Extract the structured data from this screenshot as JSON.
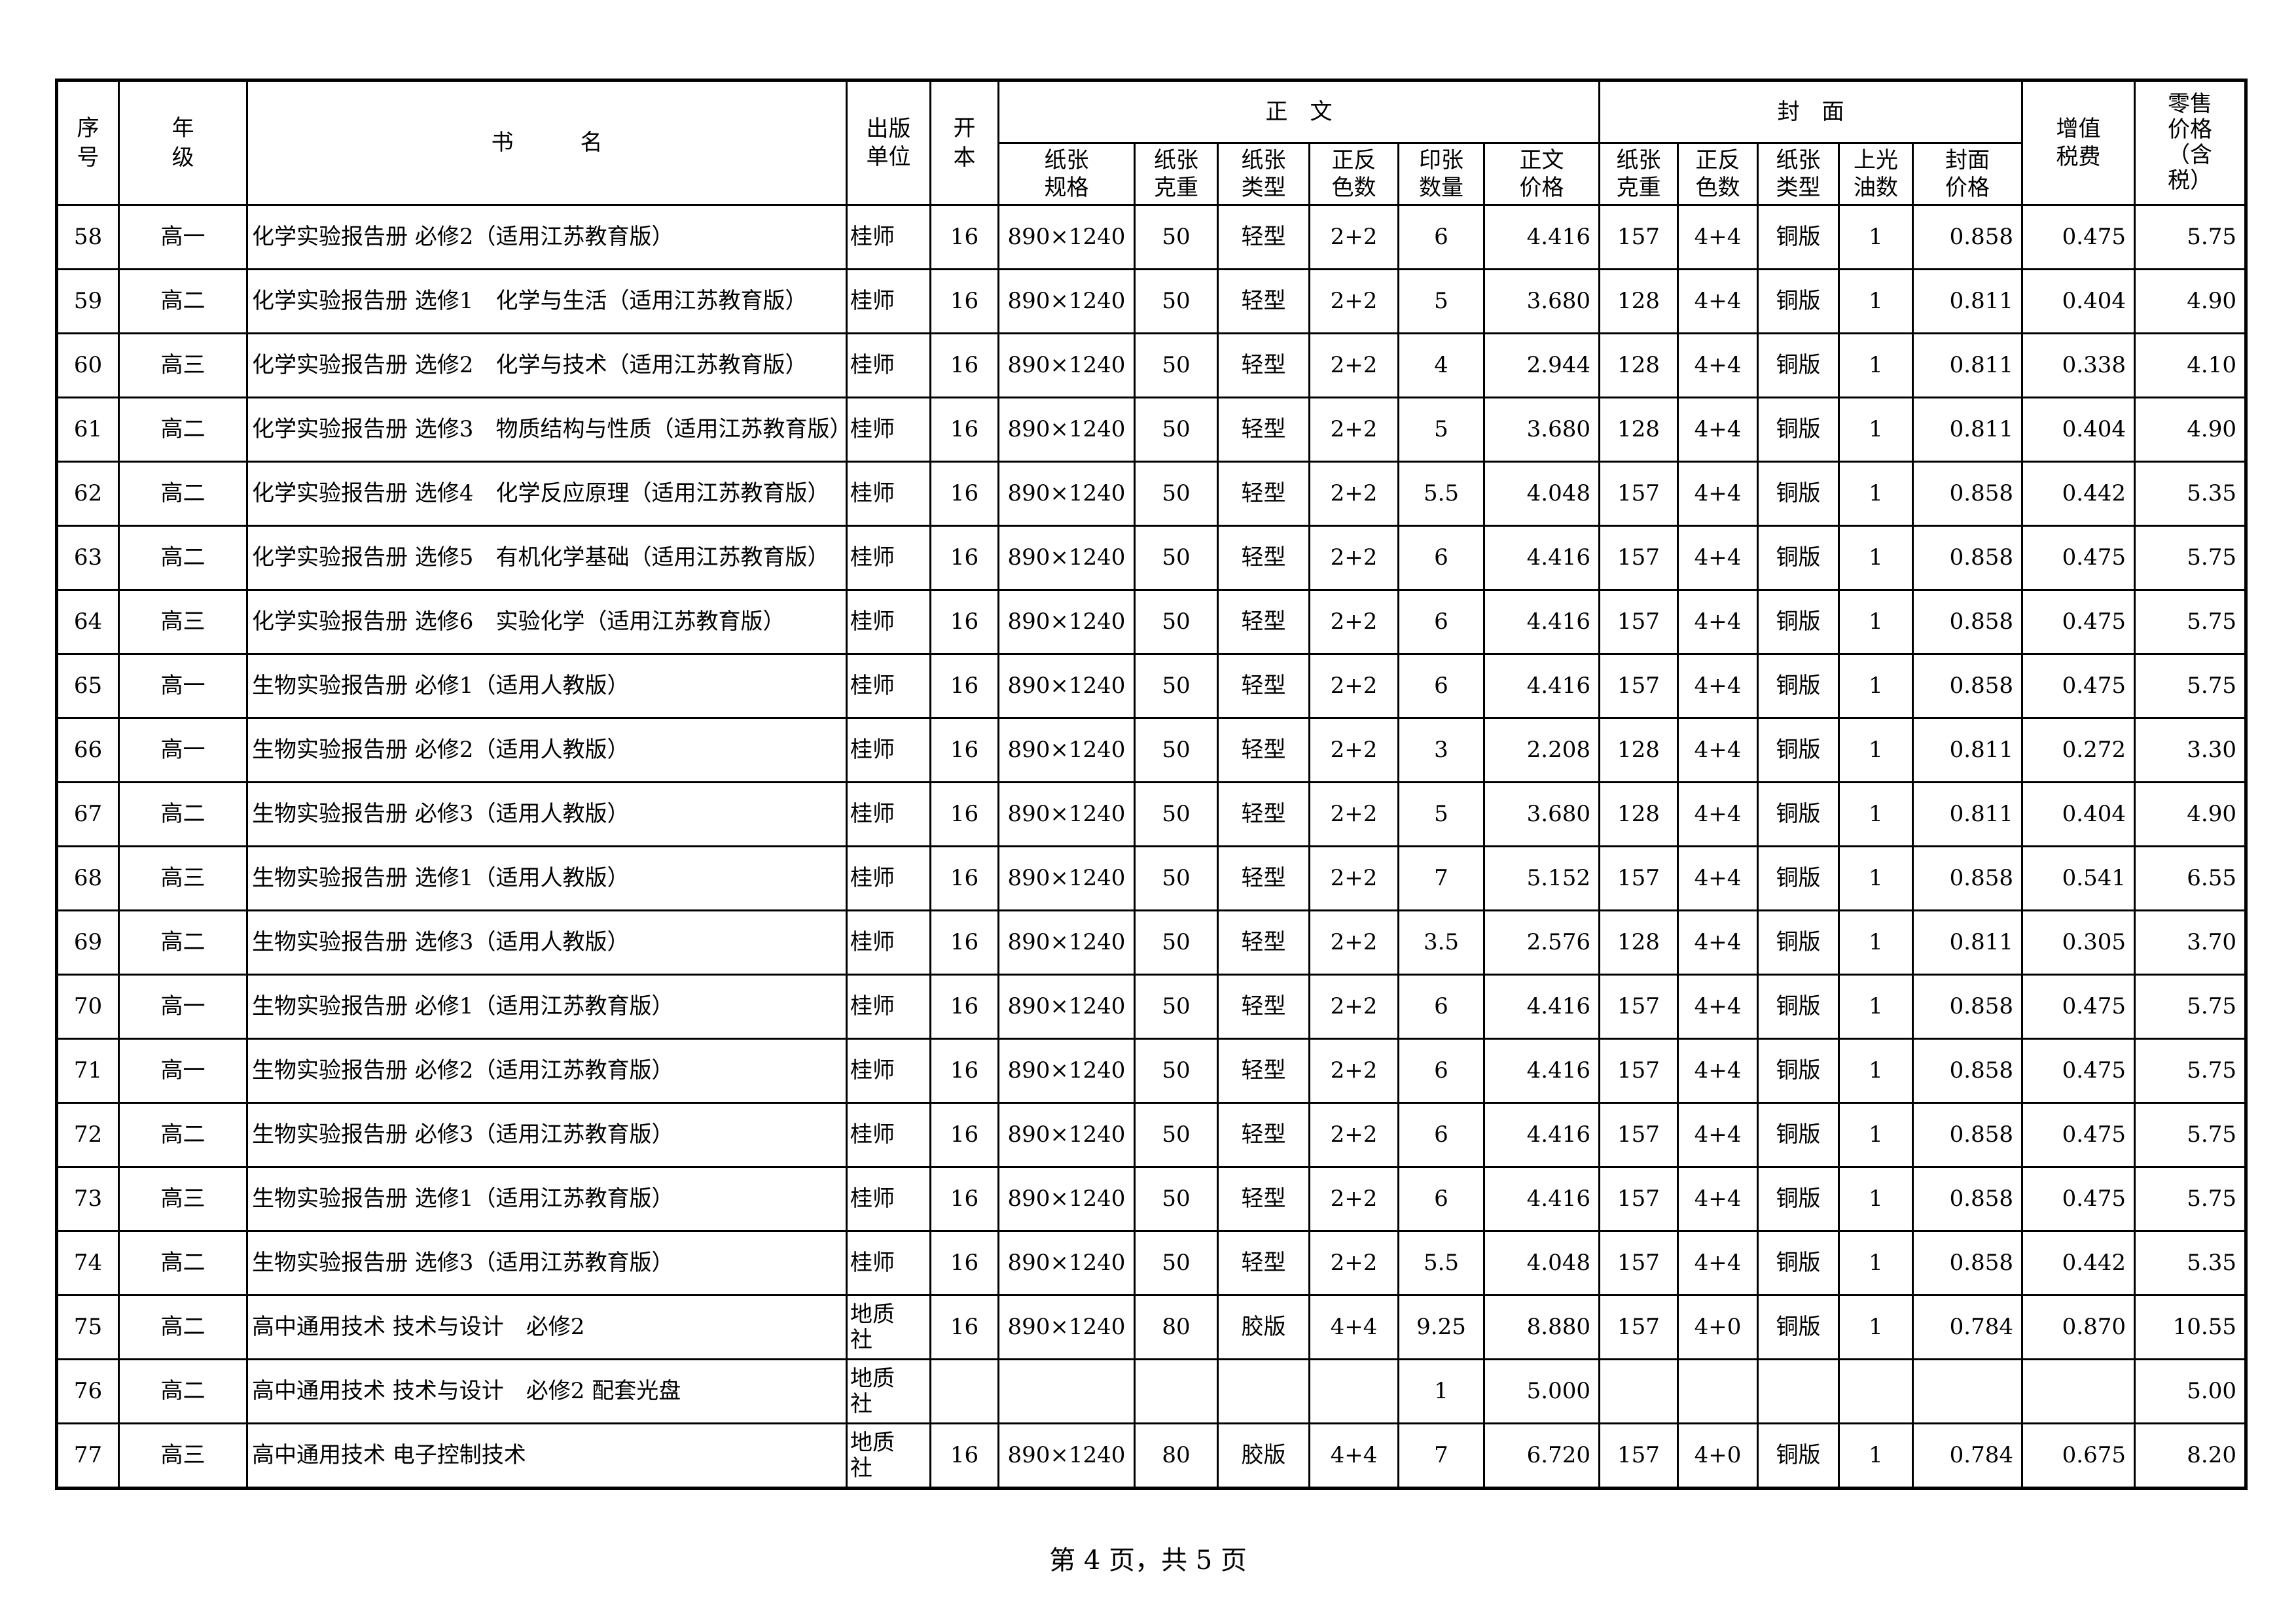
{
  "headers": {
    "seq": "序号",
    "grade": "年级",
    "title": "书　　　名",
    "publisher": "出版单位",
    "format": "开本",
    "body_group": "正　文",
    "cover_group": "封　面",
    "body_cols": [
      "纸张规格",
      "纸张克重",
      "纸张类型",
      "正反色数",
      "印张数量",
      "正文价格"
    ],
    "cover_cols": [
      "纸张克重",
      "正反色数",
      "纸张类型",
      "上光油数",
      "封面价格"
    ],
    "vat": "增值税费",
    "retail": "零售价格（含税）"
  },
  "rows": [
    [
      "58",
      "高一",
      "化学实验报告册 必修2（适用江苏教育版）",
      "桂师",
      "16",
      "890×1240",
      "50",
      "轻型",
      "2+2",
      "6",
      "4.416",
      "157",
      "4+4",
      "铜版",
      "1",
      "0.858",
      "0.475",
      "5.75"
    ],
    [
      "59",
      "高二",
      "化学实验报告册 选修1　化学与生活（适用江苏教育版）",
      "桂师",
      "16",
      "890×1240",
      "50",
      "轻型",
      "2+2",
      "5",
      "3.680",
      "128",
      "4+4",
      "铜版",
      "1",
      "0.811",
      "0.404",
      "4.90"
    ],
    [
      "60",
      "高三",
      "化学实验报告册 选修2　化学与技术（适用江苏教育版）",
      "桂师",
      "16",
      "890×1240",
      "50",
      "轻型",
      "2+2",
      "4",
      "2.944",
      "128",
      "4+4",
      "铜版",
      "1",
      "0.811",
      "0.338",
      "4.10"
    ],
    [
      "61",
      "高二",
      "化学实验报告册 选修3　物质结构与性质（适用江苏教育版）",
      "桂师",
      "16",
      "890×1240",
      "50",
      "轻型",
      "2+2",
      "5",
      "3.680",
      "128",
      "4+4",
      "铜版",
      "1",
      "0.811",
      "0.404",
      "4.90"
    ],
    [
      "62",
      "高二",
      "化学实验报告册 选修4　化学反应原理（适用江苏教育版）",
      "桂师",
      "16",
      "890×1240",
      "50",
      "轻型",
      "2+2",
      "5.5",
      "4.048",
      "157",
      "4+4",
      "铜版",
      "1",
      "0.858",
      "0.442",
      "5.35"
    ],
    [
      "63",
      "高二",
      "化学实验报告册 选修5　有机化学基础（适用江苏教育版）",
      "桂师",
      "16",
      "890×1240",
      "50",
      "轻型",
      "2+2",
      "6",
      "4.416",
      "157",
      "4+4",
      "铜版",
      "1",
      "0.858",
      "0.475",
      "5.75"
    ],
    [
      "64",
      "高三",
      "化学实验报告册 选修6　实验化学（适用江苏教育版）",
      "桂师",
      "16",
      "890×1240",
      "50",
      "轻型",
      "2+2",
      "6",
      "4.416",
      "157",
      "4+4",
      "铜版",
      "1",
      "0.858",
      "0.475",
      "5.75"
    ],
    [
      "65",
      "高一",
      "生物实验报告册 必修1（适用人教版）",
      "桂师",
      "16",
      "890×1240",
      "50",
      "轻型",
      "2+2",
      "6",
      "4.416",
      "157",
      "4+4",
      "铜版",
      "1",
      "0.858",
      "0.475",
      "5.75"
    ],
    [
      "66",
      "高一",
      "生物实验报告册 必修2（适用人教版）",
      "桂师",
      "16",
      "890×1240",
      "50",
      "轻型",
      "2+2",
      "3",
      "2.208",
      "128",
      "4+4",
      "铜版",
      "1",
      "0.811",
      "0.272",
      "3.30"
    ],
    [
      "67",
      "高二",
      "生物实验报告册 必修3（适用人教版）",
      "桂师",
      "16",
      "890×1240",
      "50",
      "轻型",
      "2+2",
      "5",
      "3.680",
      "128",
      "4+4",
      "铜版",
      "1",
      "0.811",
      "0.404",
      "4.90"
    ],
    [
      "68",
      "高三",
      "生物实验报告册 选修1（适用人教版）",
      "桂师",
      "16",
      "890×1240",
      "50",
      "轻型",
      "2+2",
      "7",
      "5.152",
      "157",
      "4+4",
      "铜版",
      "1",
      "0.858",
      "0.541",
      "6.55"
    ],
    [
      "69",
      "高二",
      "生物实验报告册 选修3（适用人教版）",
      "桂师",
      "16",
      "890×1240",
      "50",
      "轻型",
      "2+2",
      "3.5",
      "2.576",
      "128",
      "4+4",
      "铜版",
      "1",
      "0.811",
      "0.305",
      "3.70"
    ],
    [
      "70",
      "高一",
      "生物实验报告册 必修1（适用江苏教育版）",
      "桂师",
      "16",
      "890×1240",
      "50",
      "轻型",
      "2+2",
      "6",
      "4.416",
      "157",
      "4+4",
      "铜版",
      "1",
      "0.858",
      "0.475",
      "5.75"
    ],
    [
      "71",
      "高一",
      "生物实验报告册 必修2（适用江苏教育版）",
      "桂师",
      "16",
      "890×1240",
      "50",
      "轻型",
      "2+2",
      "6",
      "4.416",
      "157",
      "4+4",
      "铜版",
      "1",
      "0.858",
      "0.475",
      "5.75"
    ],
    [
      "72",
      "高二",
      "生物实验报告册 必修3（适用江苏教育版）",
      "桂师",
      "16",
      "890×1240",
      "50",
      "轻型",
      "2+2",
      "6",
      "4.416",
      "157",
      "4+4",
      "铜版",
      "1",
      "0.858",
      "0.475",
      "5.75"
    ],
    [
      "73",
      "高三",
      "生物实验报告册 选修1（适用江苏教育版）",
      "桂师",
      "16",
      "890×1240",
      "50",
      "轻型",
      "2+2",
      "6",
      "4.416",
      "157",
      "4+4",
      "铜版",
      "1",
      "0.858",
      "0.475",
      "5.75"
    ],
    [
      "74",
      "高二",
      "生物实验报告册 选修3（适用江苏教育版）",
      "桂师",
      "16",
      "890×1240",
      "50",
      "轻型",
      "2+2",
      "5.5",
      "4.048",
      "157",
      "4+4",
      "铜版",
      "1",
      "0.858",
      "0.442",
      "5.35"
    ],
    [
      "75",
      "高二",
      "高中通用技术 技术与设计　必修2",
      "地质社",
      "16",
      "890×1240",
      "80",
      "胶版",
      "4+4",
      "9.25",
      "8.880",
      "157",
      "4+0",
      "铜版",
      "1",
      "0.784",
      "0.870",
      "10.55"
    ],
    [
      "76",
      "高二",
      "高中通用技术 技术与设计　必修2 配套光盘",
      "地质社",
      "",
      "",
      "",
      "",
      "",
      "1",
      "5.000",
      "",
      "",
      "",
      "",
      "",
      "",
      "5.00"
    ],
    [
      "77",
      "高三",
      "高中通用技术 电子控制技术",
      "地质社",
      "16",
      "890×1240",
      "80",
      "胶版",
      "4+4",
      "7",
      "6.720",
      "157",
      "4+0",
      "铜版",
      "1",
      "0.784",
      "0.675",
      "8.20"
    ]
  ],
  "footer": "第 4 页，共 5 页"
}
